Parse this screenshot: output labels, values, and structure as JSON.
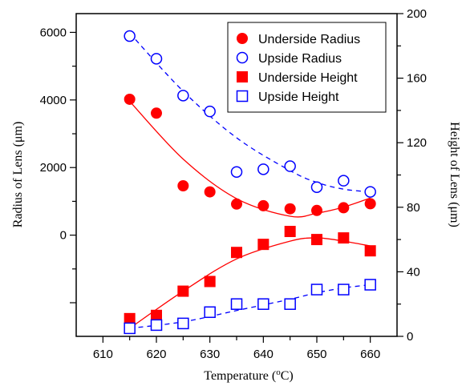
{
  "chart_data": {
    "type": "scatter",
    "xlabel": "Temperature (",
    "xlabel_sup": "o",
    "xlabel_unit": "C)",
    "ylabel_left": "Radius of Lens (μm)",
    "ylabel_right": "Height of Lens (μm)",
    "xlim": [
      605,
      665
    ],
    "ylim_left": [
      -2995,
      6555
    ],
    "ylim_right": [
      0,
      200
    ],
    "x_ticks": [
      610,
      620,
      630,
      640,
      650,
      660
    ],
    "y_left_ticks": [
      0,
      2000,
      4000,
      6000
    ],
    "y_right_ticks": [
      0,
      40,
      80,
      120,
      160,
      200
    ],
    "grid": false,
    "legend_position": "top-right",
    "colors": {
      "red": "#ff0000",
      "blue": "#0000ff"
    },
    "series": [
      {
        "name": "Underside Radius",
        "axis": "left",
        "marker": "filled-circle",
        "color": "#ff0000",
        "x": [
          615,
          620,
          625,
          630,
          635,
          640,
          645,
          650,
          655,
          660
        ],
        "y": [
          4020,
          3610,
          1460,
          1280,
          920,
          870,
          780,
          730,
          810,
          930
        ]
      },
      {
        "name": "Upside Radius",
        "axis": "left",
        "marker": "open-circle",
        "color": "#0000ff",
        "x": [
          615,
          620,
          625,
          630,
          635,
          640,
          645,
          650,
          655,
          660
        ],
        "y": [
          5890,
          5220,
          4130,
          3660,
          1870,
          1950,
          2040,
          1420,
          1610,
          1280
        ]
      },
      {
        "name": "Underside Height",
        "axis": "right",
        "marker": "filled-square",
        "color": "#ff0000",
        "x": [
          615,
          620,
          625,
          630,
          635,
          640,
          645,
          650,
          655,
          660
        ],
        "y": [
          11,
          13,
          28,
          34,
          52,
          57,
          65,
          60,
          61,
          53
        ]
      },
      {
        "name": "Upside Height",
        "axis": "right",
        "marker": "open-square",
        "color": "#0000ff",
        "x": [
          615,
          620,
          625,
          630,
          635,
          640,
          645,
          650,
          655,
          660
        ],
        "y": [
          5,
          7,
          8,
          15,
          20,
          20,
          20,
          29,
          29,
          32
        ]
      }
    ],
    "fits": [
      {
        "series": "Underside Radius",
        "axis": "left",
        "style": "solid",
        "color": "#ff0000",
        "x": [
          615,
          625,
          635,
          645,
          650,
          655,
          660
        ],
        "y": [
          3960,
          2250,
          1080,
          560,
          650,
          830,
          1100
        ]
      },
      {
        "series": "Upside Radius",
        "axis": "left",
        "style": "dashed",
        "color": "#0000ff",
        "x": [
          615,
          625,
          635,
          645,
          650,
          655,
          660
        ],
        "y": [
          5980,
          4260,
          2880,
          1910,
          1560,
          1360,
          1280
        ]
      },
      {
        "series": "Underside Height",
        "axis": "right",
        "style": "solid",
        "color": "#ff0000",
        "x": [
          615,
          625,
          635,
          645,
          650,
          655,
          660
        ],
        "y": [
          5,
          28,
          48,
          59,
          61,
          59,
          56
        ]
      },
      {
        "series": "Upside Height",
        "axis": "right",
        "style": "dashed",
        "color": "#0000ff",
        "x": [
          615,
          625,
          635,
          645,
          650,
          655,
          660
        ],
        "y": [
          5,
          9,
          16,
          23,
          27,
          30,
          32
        ]
      }
    ]
  }
}
